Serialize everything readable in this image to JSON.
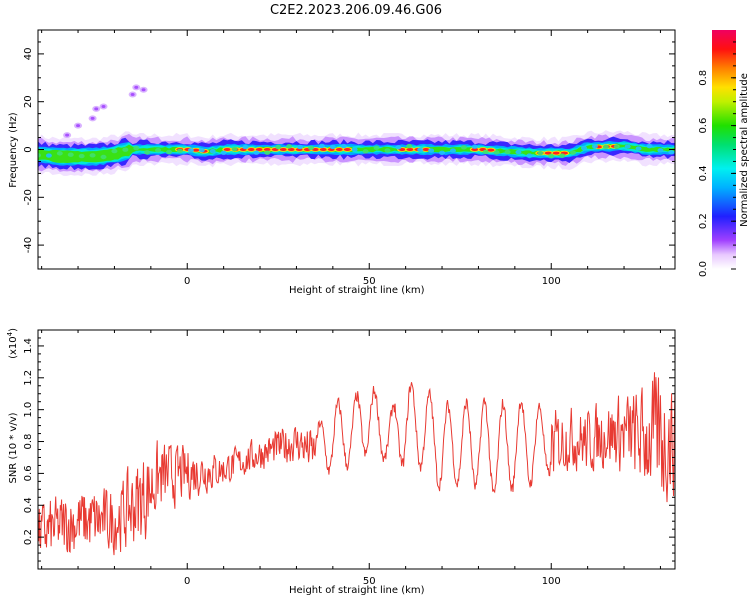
{
  "page_title": "C2E2.2023.206.09.46.G06",
  "chart_data": [
    {
      "type": "heatmap",
      "title": "C2E2.2023.206.09.46.G06",
      "xlabel": "Height of straight line (km)",
      "ylabel": "Frequency (Hz)",
      "xlim": [
        -41,
        134
      ],
      "ylim": [
        -50,
        50
      ],
      "xticks": [
        0,
        50,
        100
      ],
      "xtick_labels": [
        "0",
        "50",
        "100"
      ],
      "yticks": [
        -40,
        -20,
        0,
        20,
        40
      ],
      "ytick_labels": [
        "-40",
        "-20",
        "0",
        "20",
        "40"
      ],
      "colorbar": {
        "label": "Normalized spectral amplitude",
        "range": [
          0,
          1
        ],
        "ticks": [
          0.0,
          0.2,
          0.4,
          0.6,
          0.8
        ],
        "tick_labels": [
          "0.0",
          "0.2",
          "0.4",
          "0.6",
          "0.8"
        ],
        "colormap": "rainbow (white-purple-blue-cyan-green-yellow-orange-red-magenta)"
      },
      "ridge": {
        "description": "dominant spectral line near 0 Hz",
        "points": [
          {
            "x": -41,
            "y": -2
          },
          {
            "x": -35,
            "y": -3
          },
          {
            "x": -30,
            "y": -3
          },
          {
            "x": -25,
            "y": -3
          },
          {
            "x": -20,
            "y": -2
          },
          {
            "x": -15,
            "y": 0
          },
          {
            "x": 0,
            "y": 0
          },
          {
            "x": 5,
            "y": -1
          },
          {
            "x": 10,
            "y": 0
          },
          {
            "x": 50,
            "y": 0
          },
          {
            "x": 80,
            "y": 0
          },
          {
            "x": 95,
            "y": -1.5
          },
          {
            "x": 105,
            "y": -1.5
          },
          {
            "x": 110,
            "y": 1
          },
          {
            "x": 120,
            "y": 1.5
          },
          {
            "x": 126,
            "y": 0
          },
          {
            "x": 134,
            "y": 0
          }
        ],
        "peak_amplitude_segments": [
          {
            "from": -3,
            "to": 5
          },
          {
            "from": 10,
            "to": 45
          },
          {
            "from": 58,
            "to": 65
          },
          {
            "from": 78,
            "to": 83
          },
          {
            "from": 96,
            "to": 104
          },
          {
            "from": 112,
            "to": 118
          }
        ]
      },
      "outliers": [
        {
          "x": -33,
          "y": 6
        },
        {
          "x": -30,
          "y": 10
        },
        {
          "x": -26,
          "y": 13
        },
        {
          "x": -25,
          "y": 17
        },
        {
          "x": -23,
          "y": 18
        },
        {
          "x": -15,
          "y": 23
        },
        {
          "x": -14,
          "y": 26
        },
        {
          "x": -12,
          "y": 25
        }
      ]
    },
    {
      "type": "line",
      "xlabel": "Height of straight line (km)",
      "ylabel": "SNR (10 * v/v)",
      "y_multiplier_label": "(x10",
      "y_multiplier_exp": "4",
      "y_multiplier_close": ")",
      "xlim": [
        -41,
        134
      ],
      "ylim": [
        0,
        1.5
      ],
      "xticks": [
        0,
        50,
        100
      ],
      "xtick_labels": [
        "0",
        "50",
        "100"
      ],
      "yticks": [
        0.2,
        0.4,
        0.6,
        0.8,
        1.0,
        1.2,
        1.4
      ],
      "ytick_labels": [
        "0.2",
        "0.4",
        "0.6",
        "0.8",
        "1.0",
        "1.2",
        "1.4"
      ],
      "series": [
        {
          "color": "#e83a32",
          "envelope": [
            {
              "x": -41,
              "low": 0.0,
              "high": 0.45
            },
            {
              "x": -30,
              "low": 0.05,
              "high": 0.55
            },
            {
              "x": -20,
              "low": 0.05,
              "high": 0.55
            },
            {
              "x": -12,
              "low": 0.1,
              "high": 0.8
            },
            {
              "x": -8,
              "low": 0.3,
              "high": 0.85
            },
            {
              "x": 0,
              "low": 0.4,
              "high": 0.8
            },
            {
              "x": 10,
              "low": 0.5,
              "high": 0.75
            },
            {
              "x": 20,
              "low": 0.6,
              "high": 0.85
            },
            {
              "x": 30,
              "low": 0.65,
              "high": 0.95
            },
            {
              "x": 35,
              "low": 0.55,
              "high": 0.9
            },
            {
              "x": 40,
              "low": 0.5,
              "high": 1.1
            },
            {
              "x": 45,
              "low": 0.55,
              "high": 1.1
            },
            {
              "x": 50,
              "low": 0.6,
              "high": 1.25
            },
            {
              "x": 55,
              "low": 0.6,
              "high": 1.0
            },
            {
              "x": 60,
              "low": 0.5,
              "high": 1.25
            },
            {
              "x": 65,
              "low": 0.5,
              "high": 1.2
            },
            {
              "x": 70,
              "low": 0.35,
              "high": 1.1
            },
            {
              "x": 75,
              "low": 0.4,
              "high": 1.1
            },
            {
              "x": 80,
              "low": 0.35,
              "high": 1.15
            },
            {
              "x": 85,
              "low": 0.3,
              "high": 1.1
            },
            {
              "x": 90,
              "low": 0.35,
              "high": 1.15
            },
            {
              "x": 95,
              "low": 0.4,
              "high": 1.1
            },
            {
              "x": 100,
              "low": 0.5,
              "high": 1.05
            },
            {
              "x": 105,
              "low": 0.6,
              "high": 1.05
            },
            {
              "x": 110,
              "low": 0.55,
              "high": 1.05
            },
            {
              "x": 115,
              "low": 0.6,
              "high": 1.1
            },
            {
              "x": 120,
              "low": 0.55,
              "high": 1.15
            },
            {
              "x": 125,
              "low": 0.45,
              "high": 1.2
            },
            {
              "x": 130,
              "low": 0.3,
              "high": 1.35
            },
            {
              "x": 134,
              "low": 0.4,
              "high": 1.2
            }
          ]
        }
      ]
    }
  ]
}
